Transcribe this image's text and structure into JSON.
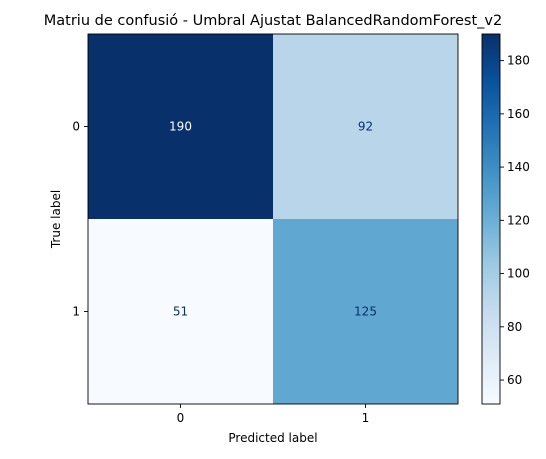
{
  "chart_data": {
    "type": "heatmap",
    "title": "Matriu de confusió - Umbral Ajustat BalancedRandomForest_v2",
    "xlabel": "Predicted label",
    "ylabel": "True label",
    "x_categories": [
      "0",
      "1"
    ],
    "y_categories": [
      "0",
      "1"
    ],
    "values": [
      [
        190,
        92
      ],
      [
        51,
        125
      ]
    ],
    "colormap": "Blues",
    "colorbar": {
      "range": [
        51,
        190
      ],
      "ticks": [
        60,
        80,
        100,
        120,
        140,
        160,
        180
      ]
    },
    "grid": false
  }
}
